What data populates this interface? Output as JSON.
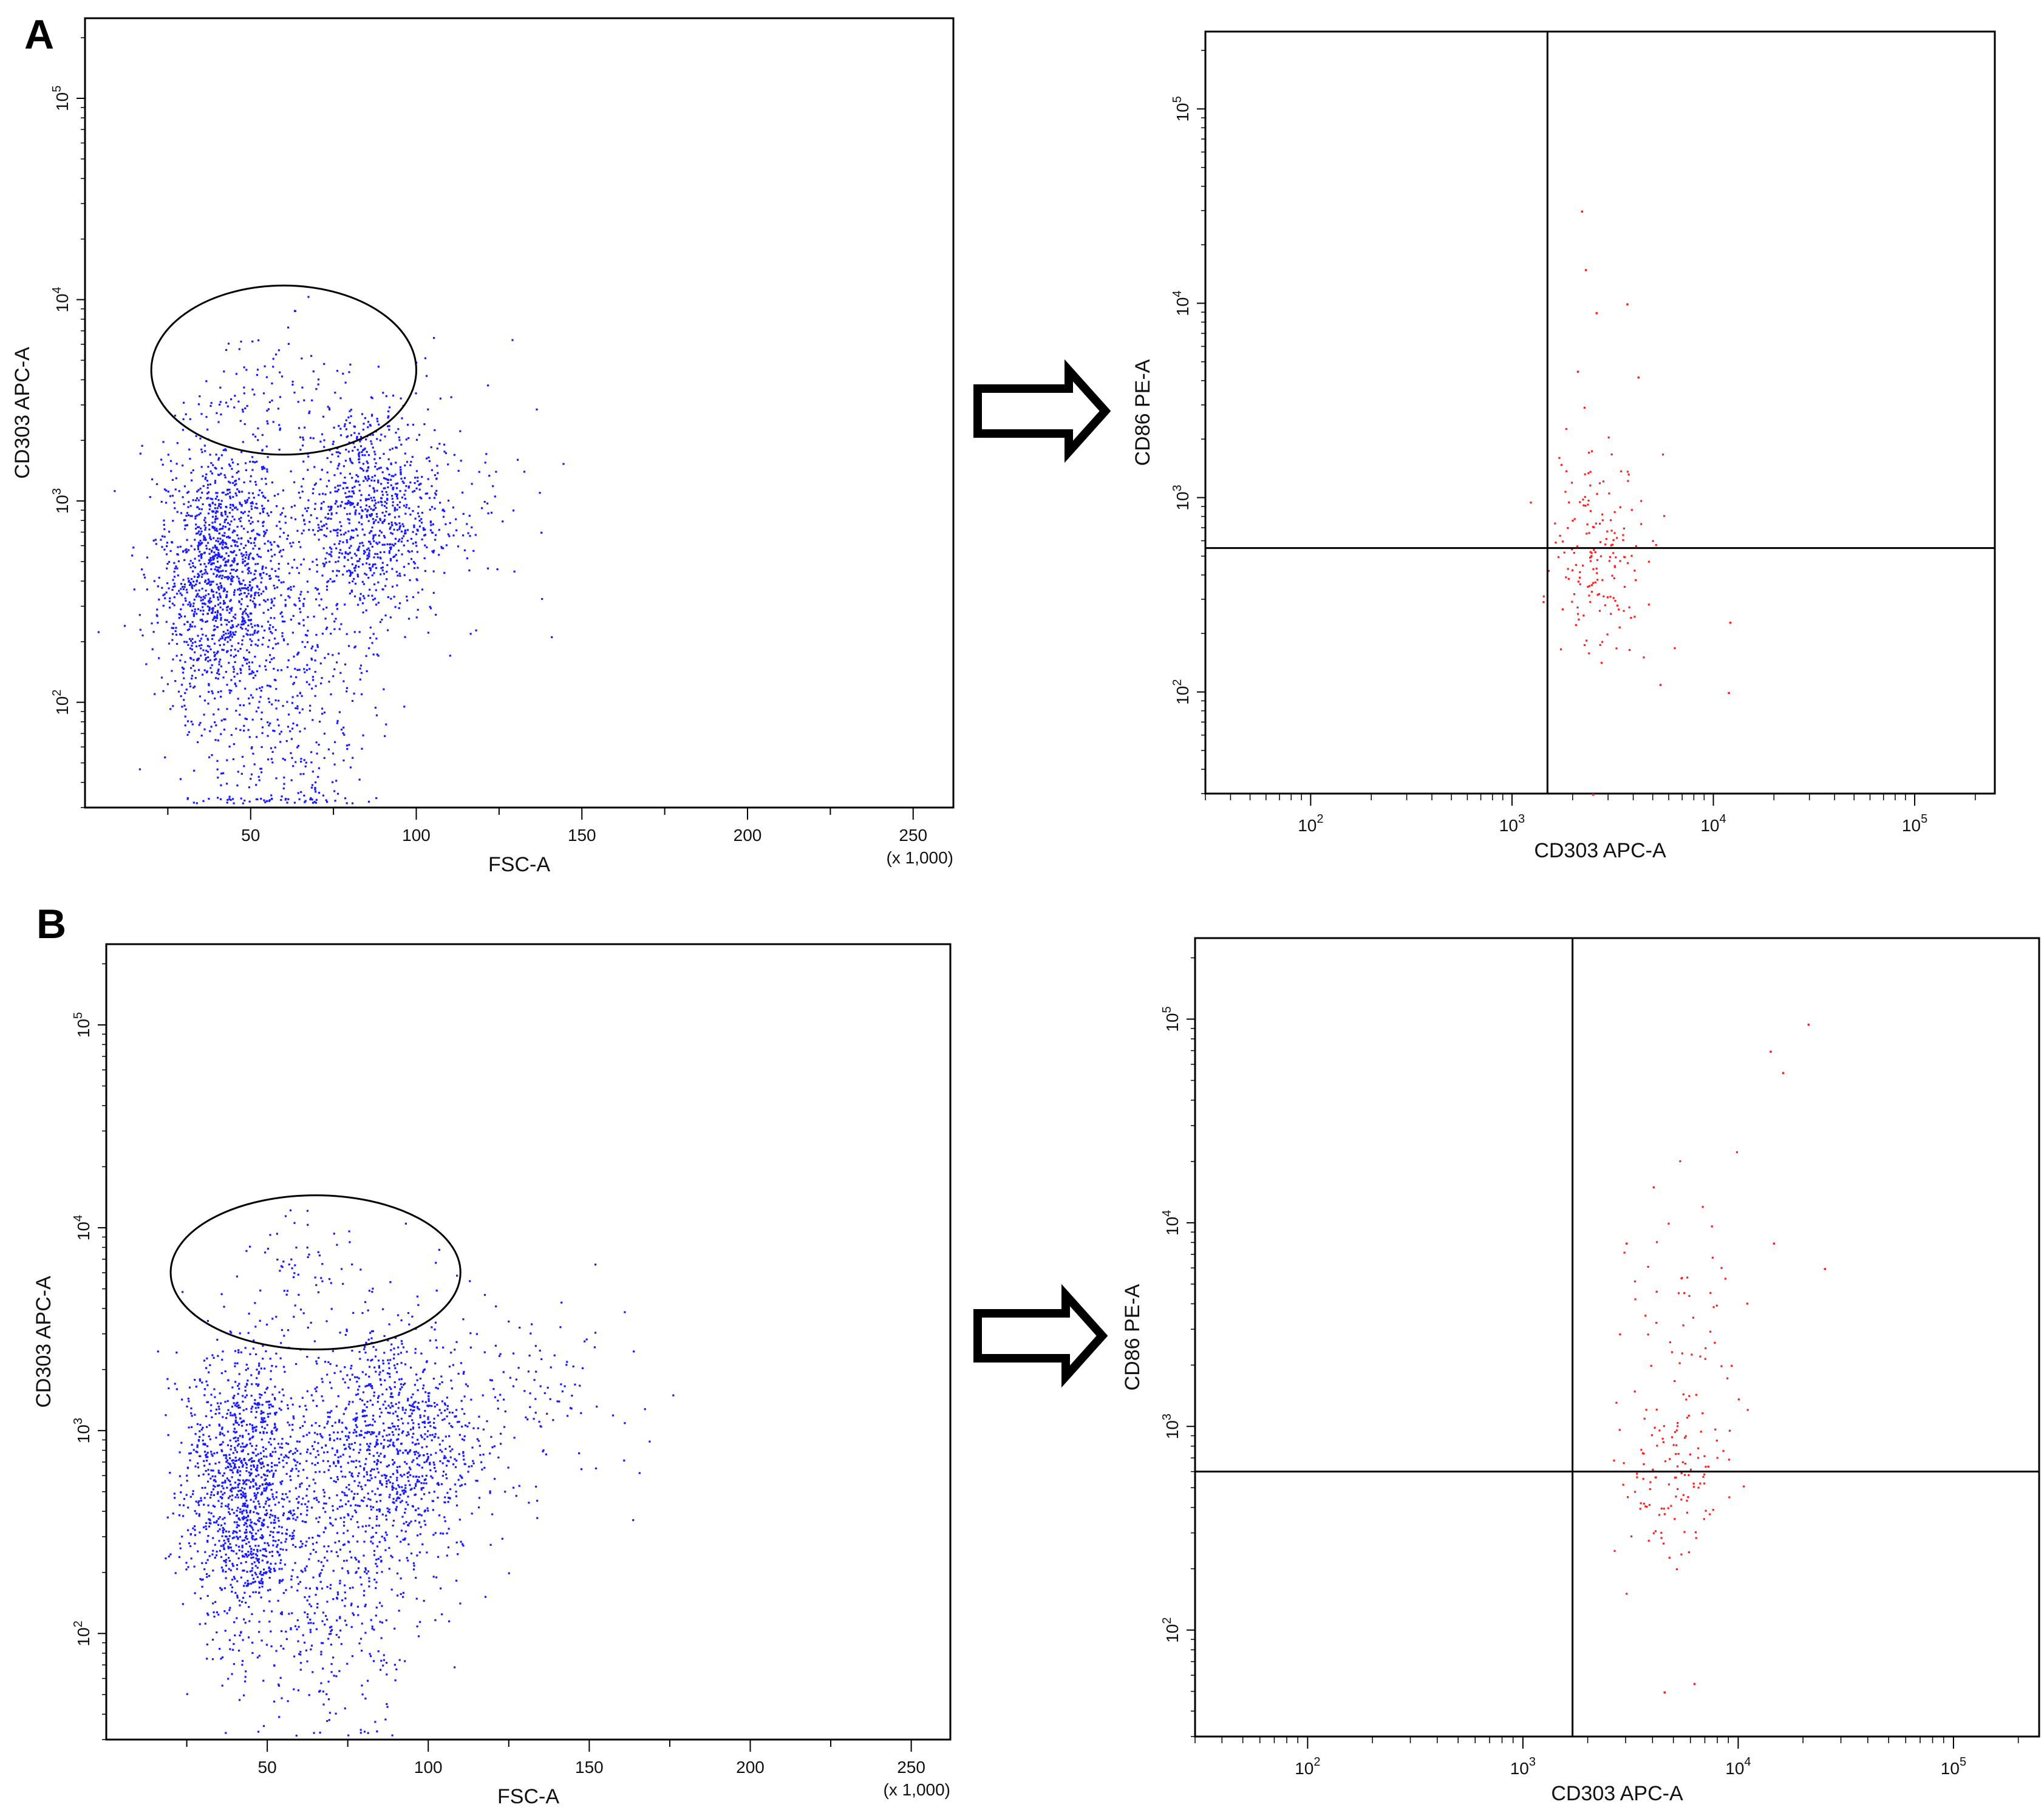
{
  "panel_letters": [
    "A",
    "B"
  ],
  "colors": {
    "dots_left": "#1a1aff",
    "dots_right": "#ff2020",
    "axis": "#000000",
    "arrow": "#000000"
  },
  "chart_data": [
    {
      "id": "A-left",
      "panel": "A",
      "type": "scatter",
      "color": "#1a1aff",
      "xlabel": "FSC-A",
      "ylabel": "CD303 APC-A",
      "x_scale": "linear",
      "y_scale": "log",
      "xlim": [
        0,
        262144
      ],
      "ylim": [
        30,
        250000
      ],
      "x_ticks": [
        50,
        100,
        150,
        200,
        250
      ],
      "x_multiplier": "(x 1,000)",
      "y_ticks": [
        "2",
        "3",
        "4",
        "5"
      ],
      "gate": {
        "shape": "ellipse",
        "x_center": 60000,
        "x_halfwidth": 40000,
        "y_log_center": 3.65,
        "y_log_halfwidth": 0.42
      },
      "clusters": [
        {
          "x_center": 40000,
          "x_spread": 9000,
          "y_log_center": 2.65,
          "y_log_spread": 0.35,
          "count": 1300
        },
        {
          "x_center": 85000,
          "x_spread": 11000,
          "y_log_center": 2.95,
          "y_log_spread": 0.28,
          "count": 900
        },
        {
          "x_center": 60000,
          "x_spread": 14000,
          "y_log_center": 2.1,
          "y_log_spread": 0.45,
          "count": 500
        },
        {
          "x_center": 57000,
          "x_spread": 9000,
          "y_log_center": 3.6,
          "y_log_spread": 0.15,
          "count": 60
        },
        {
          "x_center": 110000,
          "x_spread": 15000,
          "y_log_center": 3.0,
          "y_log_spread": 0.3,
          "count": 80
        }
      ]
    },
    {
      "id": "A-right",
      "panel": "A",
      "type": "scatter",
      "color": "#ff2020",
      "xlabel": "CD303 APC-A",
      "ylabel": "CD86 PE-A",
      "x_scale": "log",
      "y_scale": "log",
      "xlim": [
        30,
        250000
      ],
      "ylim": [
        30,
        250000
      ],
      "x_ticks": [
        "2",
        "3",
        "4",
        "5"
      ],
      "y_ticks": [
        "2",
        "3",
        "4",
        "5"
      ],
      "quadrant": {
        "x": 1500,
        "y": 550
      },
      "clusters": [
        {
          "x_log_center": 3.45,
          "x_log_spread": 0.13,
          "y_log_center": 2.75,
          "y_log_spread": 0.25,
          "count": 170
        }
      ],
      "outliers": [
        [
          2200,
          30000
        ],
        [
          2300,
          15000
        ],
        [
          3700,
          10000
        ],
        [
          2600,
          9000
        ],
        [
          2100,
          4500
        ],
        [
          4200,
          4200
        ],
        [
          12000,
          230
        ],
        [
          11800,
          100
        ],
        [
          5400,
          110
        ],
        [
          2500,
          30
        ]
      ]
    },
    {
      "id": "B-left",
      "panel": "B",
      "type": "scatter",
      "color": "#1a1aff",
      "xlabel": "FSC-A",
      "ylabel": "CD303 APC-A",
      "x_scale": "linear",
      "y_scale": "log",
      "xlim": [
        0,
        262144
      ],
      "ylim": [
        30,
        250000
      ],
      "x_ticks": [
        50,
        100,
        150,
        200,
        250
      ],
      "x_multiplier": "(x 1,000)",
      "y_ticks": [
        "2",
        "3",
        "4",
        "5"
      ],
      "gate": {
        "shape": "ellipse",
        "x_center": 65000,
        "x_halfwidth": 45000,
        "y_log_center": 3.78,
        "y_log_halfwidth": 0.38
      },
      "clusters": [
        {
          "x_center": 42000,
          "x_spread": 9000,
          "y_log_center": 2.7,
          "y_log_spread": 0.35,
          "count": 1200
        },
        {
          "x_center": 88000,
          "x_spread": 13000,
          "y_log_center": 2.95,
          "y_log_spread": 0.3,
          "count": 1000
        },
        {
          "x_center": 65000,
          "x_spread": 16000,
          "y_log_center": 2.3,
          "y_log_spread": 0.4,
          "count": 500
        },
        {
          "x_center": 60000,
          "x_spread": 10000,
          "y_log_center": 3.78,
          "y_log_spread": 0.12,
          "count": 55
        },
        {
          "x_center": 125000,
          "x_spread": 18000,
          "y_log_center": 3.2,
          "y_log_spread": 0.25,
          "count": 140
        }
      ]
    },
    {
      "id": "B-right",
      "panel": "B",
      "type": "scatter",
      "color": "#ff2020",
      "xlabel": "CD303 APC-A",
      "ylabel": "CD86 PE-A",
      "x_scale": "log",
      "y_scale": "log",
      "xlim": [
        30,
        250000
      ],
      "ylim": [
        30,
        250000
      ],
      "x_ticks": [
        "2",
        "3",
        "4",
        "5"
      ],
      "y_ticks": [
        "2",
        "3",
        "4",
        "5"
      ],
      "quadrant": {
        "x": 1700,
        "y": 600
      },
      "clusters": [
        {
          "x_log_center": 3.7,
          "x_log_spread": 0.13,
          "y_log_center": 2.75,
          "y_log_spread": 0.22,
          "count": 110
        },
        {
          "x_log_center": 3.7,
          "x_log_spread": 0.15,
          "y_log_center": 3.5,
          "y_log_spread": 0.35,
          "count": 60
        }
      ],
      "outliers": [
        [
          21000,
          95000
        ],
        [
          14000,
          70000
        ],
        [
          16000,
          55000
        ],
        [
          25000,
          6000
        ],
        [
          14500,
          8000
        ],
        [
          3000,
          8000
        ],
        [
          4500,
          50
        ],
        [
          6200,
          55
        ],
        [
          2800,
          27
        ]
      ]
    }
  ]
}
